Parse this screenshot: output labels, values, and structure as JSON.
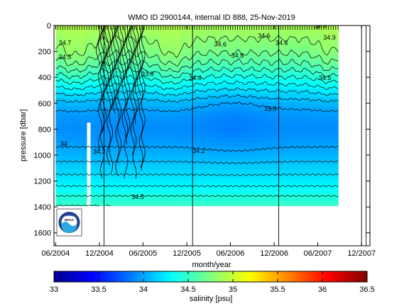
{
  "chart_data": {
    "type": "heatmap",
    "title": "WMO ID 2900144, internal ID 888, 25-Nov-2019",
    "xlabel": "month/year",
    "ylabel": "pressure [dbar]",
    "x_ticks": [
      "06/2004",
      "12/2004",
      "06/2005",
      "12/2005",
      "06/2006",
      "12/2006",
      "06/2007",
      "12/2007"
    ],
    "xlim": [
      "2004-05-25",
      "2008-01-05"
    ],
    "y_ticks": [
      0,
      200,
      400,
      600,
      800,
      1000,
      1200,
      1400,
      1600
    ],
    "ylim": [
      1700,
      0
    ],
    "y_reversed": true,
    "data_extent": {
      "x": [
        "2004-06-01",
        "2007-08-25"
      ],
      "y_max": 1390,
      "gaps": [
        [
          "2004-10-10",
          "2004-10-25"
        ]
      ]
    },
    "vertical_marker_dates": [
      "2004-12-20",
      "2005-12-25",
      "2006-12-20",
      "2007-12-01",
      "2007-12-20"
    ],
    "depth_profile_salinity": {
      "pressure": [
        0,
        50,
        100,
        200,
        300,
        400,
        500,
        600,
        700,
        800,
        900,
        1000,
        1100,
        1200,
        1300,
        1390
      ],
      "salinity": [
        34.9,
        34.85,
        34.8,
        34.72,
        34.58,
        34.4,
        34.22,
        34.05,
        33.95,
        33.92,
        33.97,
        34.05,
        34.15,
        34.25,
        34.38,
        34.5
      ]
    },
    "contour_labels": [
      {
        "text": "34.5",
        "x": "2005-05-10",
        "y": 1340
      },
      {
        "text": "34.2",
        "x": "2004-12-01",
        "y": 990
      },
      {
        "text": "34.2",
        "x": "2006-01-20",
        "y": 985
      },
      {
        "text": "34.4",
        "x": "2006-01-05",
        "y": 420
      },
      {
        "text": "33.9",
        "x": "2006-11-15",
        "y": 660
      },
      {
        "text": "34.6",
        "x": "2007-01-01",
        "y": 150
      },
      {
        "text": "34.9",
        "x": "2007-06-10",
        "y": 20
      },
      {
        "text": "34.5",
        "x": "2007-07-01",
        "y": 420
      },
      {
        "text": "34.9",
        "x": "2007-07-20",
        "y": 110
      },
      {
        "text": "34.7",
        "x": "2004-07-10",
        "y": 150
      },
      {
        "text": "34.5",
        "x": "2004-07-10",
        "y": 260
      },
      {
        "text": "34",
        "x": "2004-07-05",
        "y": 930
      },
      {
        "text": "34.6",
        "x": "2006-04-20",
        "y": 160
      },
      {
        "text": "34.8",
        "x": "2006-07-01",
        "y": 250
      },
      {
        "text": "33.9",
        "x": "2005-06-20",
        "y": 390
      },
      {
        "text": "34.6",
        "x": "2006-10-20",
        "y": 95
      }
    ],
    "colorbar": {
      "label": "salinity [psu]",
      "ticks": [
        "33",
        "33.5",
        "34",
        "34.5",
        "35",
        "35.5",
        "36",
        "36.5"
      ],
      "range": [
        33,
        36.5
      ],
      "colormap": "jet"
    },
    "logo": {
      "text": "NOAA",
      "colors": [
        "#1e3f8f",
        "#2aa8e0",
        "#ffffff"
      ]
    },
    "colors": {
      "contour": "#000000",
      "marker_line": "#000000",
      "background": "#ffffff"
    }
  }
}
